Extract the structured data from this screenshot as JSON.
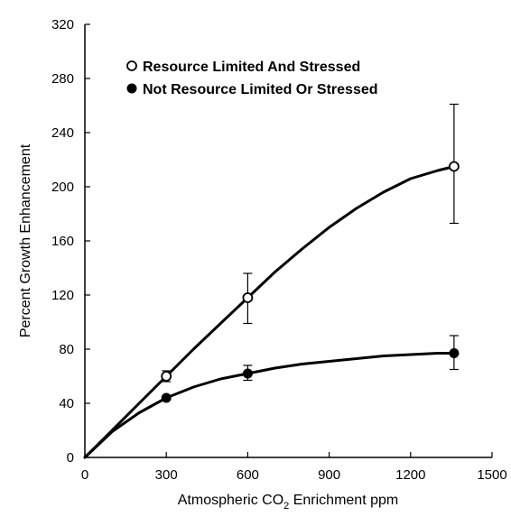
{
  "chart_data": {
    "type": "line",
    "title": "",
    "xlabel": "Atmospheric CO",
    "xlabel_sub": "2",
    "xlabel_after": " Enrichment  ppm",
    "ylabel": "Percent Growth Enhancement",
    "xlim": [
      0,
      1500
    ],
    "ylim": [
      0,
      320
    ],
    "x_ticks": [
      0,
      300,
      600,
      900,
      1200,
      1500
    ],
    "y_ticks": [
      0,
      40,
      80,
      120,
      160,
      200,
      240,
      280,
      320
    ],
    "grid": false,
    "legend_position": "top-left",
    "series": [
      {
        "name": "Resource Limited And Stressed",
        "marker": "open-circle",
        "x": [
          300,
          600,
          1360
        ],
        "y": [
          60,
          118,
          215
        ],
        "err_low": [
          56,
          99,
          173
        ],
        "err_high": [
          64,
          136,
          261
        ],
        "curve": [
          [
            0,
            0
          ],
          [
            100,
            20
          ],
          [
            200,
            40
          ],
          [
            300,
            60
          ],
          [
            400,
            80
          ],
          [
            500,
            99
          ],
          [
            600,
            118
          ],
          [
            700,
            137
          ],
          [
            800,
            154
          ],
          [
            900,
            170
          ],
          [
            1000,
            184
          ],
          [
            1100,
            196
          ],
          [
            1200,
            206
          ],
          [
            1300,
            212
          ],
          [
            1360,
            215
          ]
        ]
      },
      {
        "name": "Not Resource Limited Or Stressed",
        "marker": "filled-circle",
        "x": [
          300,
          600,
          1360
        ],
        "y": [
          44,
          62,
          77
        ],
        "err_low": [
          44,
          57,
          65
        ],
        "err_high": [
          44,
          68,
          90
        ],
        "curve": [
          [
            0,
            0
          ],
          [
            100,
            19
          ],
          [
            200,
            33
          ],
          [
            300,
            44
          ],
          [
            400,
            52
          ],
          [
            500,
            58
          ],
          [
            600,
            62
          ],
          [
            700,
            66
          ],
          [
            800,
            69
          ],
          [
            900,
            71
          ],
          [
            1000,
            73
          ],
          [
            1100,
            75
          ],
          [
            1200,
            76
          ],
          [
            1300,
            77
          ],
          [
            1360,
            77
          ]
        ]
      }
    ]
  }
}
